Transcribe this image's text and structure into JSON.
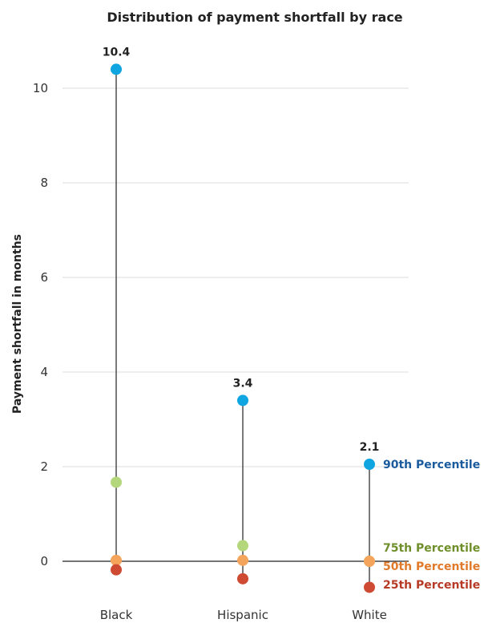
{
  "chart_data": {
    "type": "scatter",
    "title": "Distribution of payment shortfall by race",
    "ylabel": "Payment shortfall in months",
    "xlabel": "",
    "ylim": [
      -0.7,
      10.6
    ],
    "yticks": [
      0,
      2,
      4,
      6,
      8,
      10
    ],
    "grid": true,
    "categories": [
      "Black",
      "Hispanic",
      "White"
    ],
    "series": [
      {
        "name": "90th Percentile",
        "color": "#0ea5e0",
        "values": [
          10.4,
          3.4,
          2.05
        ]
      },
      {
        "name": "75th Percentile",
        "color": "#b5d77c",
        "values": [
          1.67,
          0.33,
          0.0
        ]
      },
      {
        "name": "50th Percentile",
        "color": "#f5a45b",
        "values": [
          0.02,
          0.02,
          0.0
        ]
      },
      {
        "name": "25th Percentile",
        "color": "#cf4a33",
        "values": [
          -0.18,
          -0.37,
          -0.55
        ]
      }
    ],
    "data_labels": [
      "10.4",
      "3.4",
      "2.1"
    ],
    "legend_colors": [
      "#1a5b9e",
      "#6f8f2a",
      "#e07a2a",
      "#b63a25"
    ],
    "legend_position": "right"
  }
}
